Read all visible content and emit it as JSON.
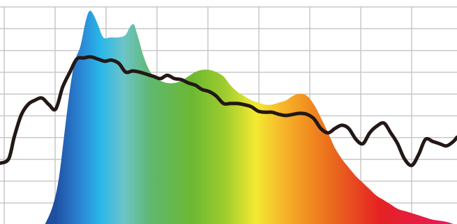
{
  "chart_data": {
    "type": "area",
    "title": "",
    "xlabel": "",
    "ylabel": "",
    "x_range": [
      0,
      100
    ],
    "y_range": [
      0,
      100
    ],
    "grid": true,
    "grid_columns": 9,
    "grid_rows": 10,
    "colors": {
      "grid": "#c8c8c8",
      "line": "#231815",
      "spectrum": [
        "#1e4fa0",
        "#2a7fd0",
        "#29b7ea",
        "#6cc4c9",
        "#5fb86e",
        "#6cb832",
        "#9ccc2d",
        "#f3ea32",
        "#f6b52a",
        "#f08a1f",
        "#e95a1e",
        "#e52222",
        "#e6195a"
      ]
    },
    "series": [
      {
        "name": "",
        "kind": "area",
        "x": [
          9.9,
          11.5,
          12.8,
          14.0,
          15.3,
          16.4,
          17.6,
          18.7,
          19.5,
          20.3,
          21.4,
          22.6,
          24.1,
          25.8,
          27.4,
          28.5,
          29.3,
          29.8,
          30.5,
          31.3,
          32.4,
          33.6,
          35.1,
          36.6,
          38.2,
          39.7,
          41.2,
          42.7,
          44.2,
          45.8,
          47.3,
          48.9,
          50.4,
          51.9,
          53.4,
          55.0,
          56.5,
          58.0,
          59.5,
          61.1,
          62.6,
          64.1,
          65.6,
          67.2,
          68.7,
          70.2,
          71.8,
          73.3,
          74.8,
          76.3,
          77.9,
          79.4,
          80.9,
          82.4,
          84.0,
          85.5,
          87.0,
          88.5,
          90.1,
          91.6,
          93.1,
          94.7,
          96.2,
          97.7,
          99.2
        ],
        "y": [
          0,
          8,
          20,
          40,
          62,
          75,
          82,
          93,
          98,
          97,
          92,
          86,
          86,
          86,
          87,
          91,
          92,
          89,
          84,
          78,
          72,
          68,
          66,
          65,
          65,
          66,
          68,
          70,
          71,
          71,
          70,
          68,
          64,
          61,
          59,
          57,
          56,
          55,
          55,
          56,
          57,
          59,
          60,
          59,
          55,
          49,
          42,
          35,
          30,
          26,
          22,
          19,
          16,
          13,
          11,
          9,
          7,
          6,
          5,
          4,
          3,
          2,
          1.5,
          1,
          0
        ]
      },
      {
        "name": "",
        "kind": "line",
        "x": [
          0,
          1.9,
          3.1,
          4.6,
          6.1,
          7.6,
          9.2,
          10.7,
          12.2,
          13.7,
          15.3,
          16.8,
          18.3,
          19.8,
          21.4,
          22.9,
          24.4,
          26.0,
          27.5,
          29.0,
          30.5,
          32.1,
          33.6,
          35.1,
          36.6,
          38.2,
          39.7,
          41.2,
          42.7,
          44.2,
          45.8,
          47.3,
          48.9,
          50.4,
          51.9,
          53.4,
          55.0,
          56.5,
          58.0,
          59.5,
          61.1,
          62.6,
          64.1,
          65.6,
          67.2,
          68.7,
          70.2,
          71.8,
          73.3,
          74.8,
          76.3,
          77.9,
          79.4,
          80.9,
          82.4,
          84.0,
          85.5,
          87.0,
          88.5,
          90.1,
          91.6,
          93.1,
          94.7,
          96.2,
          97.7,
          99.2,
          100
        ],
        "y": [
          28,
          30,
          40,
          50,
          55,
          57,
          58,
          55,
          53,
          63,
          70,
          76,
          76.5,
          77,
          76,
          75,
          75.5,
          74,
          70,
          70.5,
          70,
          69,
          68,
          67,
          68.5,
          67,
          66.5,
          65,
          64,
          62,
          61,
          59,
          55.5,
          55.5,
          55.5,
          55,
          54,
          52,
          51.5,
          51.5,
          50.5,
          50,
          50.5,
          51,
          50.5,
          48.5,
          44,
          42,
          44,
          45.5,
          44,
          39,
          37,
          42,
          45,
          46.5,
          42,
          37,
          30,
          27,
          32,
          39,
          38,
          37,
          36,
          38,
          40
        ]
      }
    ]
  }
}
